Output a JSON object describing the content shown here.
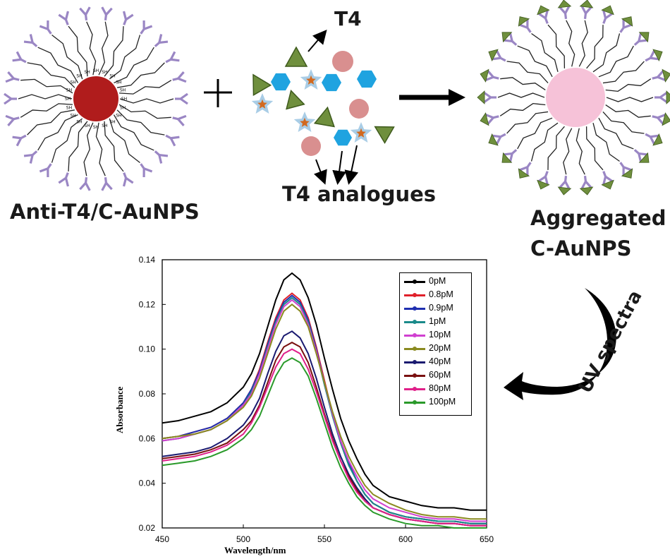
{
  "diagram": {
    "labels": {
      "t4": "T4",
      "t4_analogues": "T4 analogues",
      "anti_t4": "Anti-T4/C-AuNPS",
      "aggregated_line1": "Aggregated",
      "aggregated_line2": "C-AuNPS",
      "uv_spectra": "UV spectra"
    },
    "plus_sign": "+",
    "thiol_label": "SH",
    "colors": {
      "gold_core": "#b01c1c",
      "aggregated_core": "#f6c2d8",
      "antibody": "#9a86c4",
      "triangle": "#6f8f3d",
      "hexagon": "#1fa3e0",
      "circle": "#d98f8f",
      "star": "#a9cde6",
      "star_center": "#d2691e"
    }
  },
  "chart_data": {
    "type": "line",
    "title": "",
    "xlabel": "Wavelength/nm",
    "ylabel": "Absorbance",
    "xlim": [
      450,
      650
    ],
    "ylim": [
      0.02,
      0.14
    ],
    "xticks": [
      450,
      500,
      550,
      600,
      650
    ],
    "yticks": [
      0.02,
      0.04,
      0.06,
      0.08,
      0.1,
      0.12,
      0.14
    ],
    "ytick_labels": [
      "0.02",
      "0.04",
      "0.06",
      "0.08",
      "0.10",
      "0.12",
      "0.14"
    ],
    "legend_position": "top-right",
    "x": [
      450,
      460,
      470,
      480,
      490,
      500,
      505,
      510,
      515,
      520,
      525,
      530,
      535,
      540,
      545,
      550,
      555,
      560,
      565,
      570,
      575,
      580,
      590,
      600,
      610,
      620,
      630,
      640,
      650
    ],
    "series": [
      {
        "name": "0pM",
        "color": "#000000",
        "values": [
          0.067,
          0.068,
          0.07,
          0.072,
          0.076,
          0.083,
          0.089,
          0.098,
          0.11,
          0.122,
          0.131,
          0.134,
          0.131,
          0.123,
          0.111,
          0.096,
          0.082,
          0.069,
          0.059,
          0.051,
          0.044,
          0.039,
          0.034,
          0.032,
          0.03,
          0.029,
          0.029,
          0.028,
          0.028
        ]
      },
      {
        "name": "0.8pM",
        "color": "#e0202a",
        "values": [
          0.06,
          0.061,
          0.063,
          0.065,
          0.069,
          0.076,
          0.082,
          0.091,
          0.103,
          0.114,
          0.122,
          0.125,
          0.122,
          0.114,
          0.101,
          0.086,
          0.071,
          0.059,
          0.049,
          0.041,
          0.035,
          0.031,
          0.027,
          0.025,
          0.024,
          0.023,
          0.023,
          0.022,
          0.022
        ]
      },
      {
        "name": "0.9pM",
        "color": "#1f2fb0",
        "values": [
          0.06,
          0.061,
          0.063,
          0.065,
          0.069,
          0.076,
          0.082,
          0.09,
          0.102,
          0.113,
          0.121,
          0.124,
          0.121,
          0.113,
          0.1,
          0.085,
          0.071,
          0.059,
          0.049,
          0.041,
          0.035,
          0.031,
          0.027,
          0.025,
          0.024,
          0.023,
          0.023,
          0.022,
          0.022
        ]
      },
      {
        "name": "1pM",
        "color": "#1a8a8a",
        "values": [
          0.059,
          0.06,
          0.062,
          0.064,
          0.068,
          0.075,
          0.081,
          0.089,
          0.101,
          0.112,
          0.12,
          0.123,
          0.12,
          0.112,
          0.099,
          0.084,
          0.07,
          0.058,
          0.048,
          0.041,
          0.035,
          0.031,
          0.027,
          0.025,
          0.024,
          0.023,
          0.023,
          0.022,
          0.022
        ]
      },
      {
        "name": "10pM",
        "color": "#d040d0",
        "values": [
          0.059,
          0.06,
          0.062,
          0.064,
          0.068,
          0.075,
          0.08,
          0.089,
          0.1,
          0.111,
          0.119,
          0.122,
          0.119,
          0.111,
          0.099,
          0.085,
          0.071,
          0.059,
          0.05,
          0.043,
          0.037,
          0.033,
          0.029,
          0.027,
          0.025,
          0.024,
          0.024,
          0.023,
          0.023
        ]
      },
      {
        "name": "20pM",
        "color": "#8a8a20",
        "values": [
          0.06,
          0.061,
          0.062,
          0.064,
          0.068,
          0.074,
          0.079,
          0.087,
          0.098,
          0.109,
          0.117,
          0.12,
          0.117,
          0.11,
          0.098,
          0.085,
          0.072,
          0.061,
          0.052,
          0.045,
          0.039,
          0.035,
          0.031,
          0.028,
          0.026,
          0.025,
          0.025,
          0.024,
          0.024
        ]
      },
      {
        "name": "40pM",
        "color": "#1a1a70",
        "values": [
          0.052,
          0.053,
          0.054,
          0.056,
          0.06,
          0.066,
          0.071,
          0.078,
          0.089,
          0.099,
          0.106,
          0.108,
          0.105,
          0.098,
          0.087,
          0.074,
          0.062,
          0.052,
          0.044,
          0.038,
          0.033,
          0.029,
          0.026,
          0.024,
          0.023,
          0.022,
          0.022,
          0.021,
          0.021
        ]
      },
      {
        "name": "60pM",
        "color": "#7a1010",
        "values": [
          0.051,
          0.052,
          0.053,
          0.055,
          0.058,
          0.064,
          0.068,
          0.075,
          0.085,
          0.095,
          0.101,
          0.103,
          0.101,
          0.094,
          0.083,
          0.071,
          0.06,
          0.05,
          0.043,
          0.037,
          0.032,
          0.029,
          0.026,
          0.024,
          0.023,
          0.022,
          0.022,
          0.021,
          0.021
        ]
      },
      {
        "name": "80pM",
        "color": "#e0208a",
        "values": [
          0.05,
          0.051,
          0.052,
          0.054,
          0.057,
          0.062,
          0.067,
          0.074,
          0.083,
          0.092,
          0.098,
          0.1,
          0.098,
          0.091,
          0.081,
          0.07,
          0.059,
          0.05,
          0.042,
          0.036,
          0.032,
          0.029,
          0.026,
          0.024,
          0.023,
          0.022,
          0.022,
          0.021,
          0.021
        ]
      },
      {
        "name": "100pM",
        "color": "#2a9a2a",
        "values": [
          0.048,
          0.049,
          0.05,
          0.052,
          0.055,
          0.06,
          0.064,
          0.07,
          0.079,
          0.088,
          0.094,
          0.096,
          0.094,
          0.088,
          0.078,
          0.067,
          0.056,
          0.047,
          0.04,
          0.034,
          0.03,
          0.027,
          0.024,
          0.022,
          0.021,
          0.021,
          0.02,
          0.02,
          0.02
        ]
      }
    ]
  }
}
